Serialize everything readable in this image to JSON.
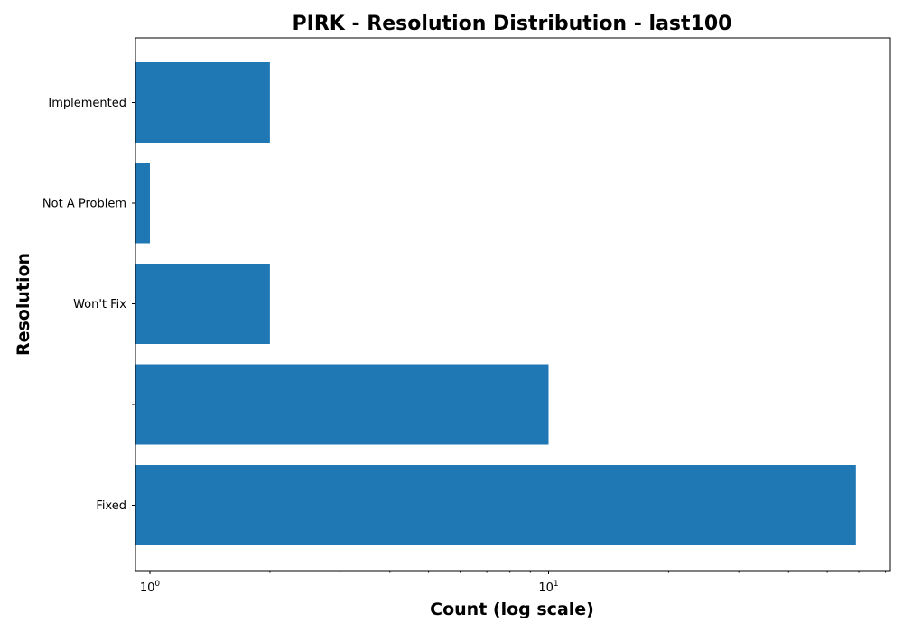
{
  "chart_data": {
    "type": "bar",
    "orientation": "horizontal",
    "title": "PIRK - Resolution Distribution - last100",
    "xlabel": "Count (log scale)",
    "ylabel": "Resolution",
    "x_scale": "log",
    "xlim": [
      0.92,
      72
    ],
    "categories": [
      "Fixed",
      "",
      "Won't Fix",
      "Not A Problem",
      "Implemented"
    ],
    "values": [
      59,
      10,
      2,
      1,
      2
    ],
    "x_major_ticks": [
      {
        "base": "10",
        "exp": "0",
        "value": 1
      },
      {
        "base": "10",
        "exp": "1",
        "value": 10
      }
    ],
    "bar_color": "#1f77b4",
    "grid": false,
    "legend": "none"
  }
}
